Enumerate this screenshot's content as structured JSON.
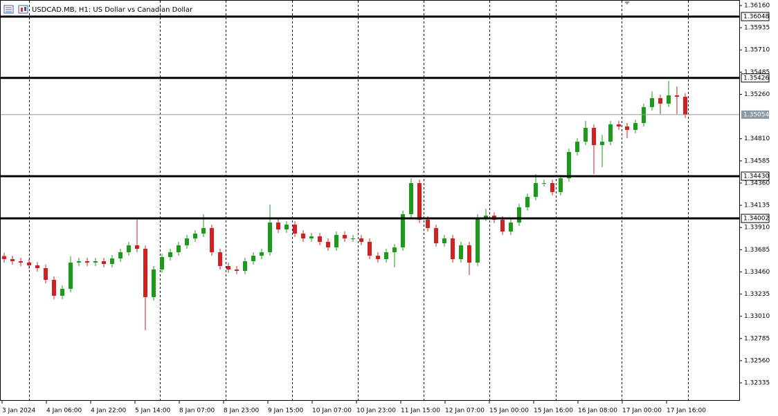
{
  "chart_data": {
    "type": "candlestick",
    "title": "USDCAD.MB, H1:  US Dollar vs Canadian Dollar",
    "up_color": "#1a9c1a",
    "down_color": "#d21f1f",
    "ylim": [
      1.32153,
      1.36216
    ],
    "yticks": [
      {
        "value": 1.3616,
        "label": "1.36160"
      },
      1.35935,
      {
        "value": 1.3571,
        "label": "1.35710"
      },
      1.35485,
      {
        "value": 1.3526,
        "label": "1.35260"
      },
      {
        "value": 1.3481,
        "label": "1.34810"
      },
      1.34585,
      {
        "value": 1.3436,
        "label": "1.34360"
      },
      1.34135,
      {
        "value": 1.3391,
        "label": "1.33910"
      },
      1.33685,
      {
        "value": 1.3346,
        "label": "1.33460"
      },
      1.33235,
      {
        "value": 1.3301,
        "label": "1.33010"
      },
      1.32785,
      {
        "value": 1.3256,
        "label": "1.32560"
      },
      1.32335
    ],
    "levels": [
      1.36048,
      1.35426,
      {
        "value": 1.3443,
        "label": "1.34430"
      },
      1.34002
    ],
    "current_price": 1.35054,
    "x_labels": [
      "3 Jan 2024",
      "4 Jan 06:00",
      "4 Jan 22:00",
      "5 Jan 14:00",
      "8 Jan 07:00",
      "8 Jan 23:00",
      "9 Jan 15:00",
      "10 Jan 07:00",
      "10 Jan 23:00",
      "11 Jan 15:00",
      "12 Jan 07:00",
      "15 Jan 00:00",
      "15 Jan 16:00",
      "16 Jan 08:00",
      "17 Jan 00:00",
      "17 Jan 16:00"
    ],
    "open": [
      1.3362,
      1.33589,
      1.33568,
      1.33554,
      1.33526,
      1.33498,
      1.33379,
      1.33218,
      1.33288,
      1.33554,
      1.33568,
      1.33554,
      1.33568,
      1.3354,
      1.33596,
      1.33659,
      1.33729,
      1.33694,
      1.33204,
      1.33484,
      1.3361,
      1.33659,
      1.33729,
      1.33799,
      1.33848,
      1.33904,
      1.33659,
      1.33519,
      1.33484,
      1.3347,
      1.33568,
      1.33624,
      1.33659,
      1.3396,
      1.3389,
      1.33939,
      1.33848,
      1.33799,
      1.3382,
      1.33764,
      1.33708,
      1.33834,
      1.33799,
      1.33799,
      1.33764,
      1.33624,
      1.33589,
      1.33659,
      1.33708,
      1.34045,
      1.3436,
      1.33988,
      1.33904,
      1.3375,
      1.33799,
      1.33589,
      1.33729,
      1.33554,
      1.34009,
      1.3403,
      1.33988,
      1.33869,
      1.3396,
      1.34115,
      1.3422,
      1.3436,
      1.3436,
      1.34269,
      1.34409,
      1.34675,
      1.3478,
      1.3492,
      1.34745,
      1.3478,
      1.34955,
      1.34934,
      1.34899,
      1.34969,
      1.3513,
      1.35221,
      1.35165,
      1.35249,
      1.35235
    ],
    "high": [
      1.33655,
      1.33624,
      1.33603,
      1.33589,
      1.33561,
      1.33533,
      1.33414,
      1.33323,
      1.33619,
      1.33603,
      1.33603,
      1.33603,
      1.33603,
      1.33631,
      1.33694,
      1.33764,
      1.33988,
      1.33729,
      1.33519,
      1.33645,
      1.33694,
      1.33764,
      1.33834,
      1.33883,
      1.34045,
      1.33939,
      1.33694,
      1.33554,
      1.33519,
      1.33603,
      1.33659,
      1.33694,
      1.34143,
      1.33995,
      1.33974,
      1.33974,
      1.33883,
      1.33855,
      1.33855,
      1.33799,
      1.33869,
      1.33869,
      1.33834,
      1.33834,
      1.33799,
      1.33659,
      1.33694,
      1.33743,
      1.3408,
      1.34409,
      1.34395,
      1.34023,
      1.33939,
      1.33834,
      1.33834,
      1.33764,
      1.33764,
      1.34044,
      1.34099,
      1.34065,
      1.34023,
      1.33995,
      1.3415,
      1.34255,
      1.3445,
      1.34395,
      1.34395,
      1.34444,
      1.3471,
      1.34815,
      1.3499,
      1.34955,
      1.3485,
      1.3499,
      1.3499,
      1.34969,
      1.35004,
      1.35165,
      1.3529,
      1.35256,
      1.35396,
      1.3534,
      1.3527
    ],
    "low": [
      1.33554,
      1.33533,
      1.33519,
      1.33491,
      1.33463,
      1.33344,
      1.33183,
      1.33183,
      1.33253,
      1.33519,
      1.33519,
      1.33519,
      1.33505,
      1.33505,
      1.33561,
      1.33624,
      1.33659,
      1.32868,
      1.33169,
      1.33449,
      1.33575,
      1.33624,
      1.33694,
      1.33764,
      1.33813,
      1.33624,
      1.33484,
      1.33449,
      1.33435,
      1.33435,
      1.33533,
      1.33589,
      1.33624,
      1.33855,
      1.33855,
      1.33813,
      1.33764,
      1.33764,
      1.33729,
      1.33673,
      1.33673,
      1.33764,
      1.33764,
      1.33729,
      1.33589,
      1.33554,
      1.33554,
      1.33505,
      1.33673,
      1.3401,
      1.33953,
      1.33869,
      1.33715,
      1.33715,
      1.33554,
      1.33554,
      1.33428,
      1.33519,
      1.33974,
      1.33953,
      1.33834,
      1.33834,
      1.33925,
      1.3408,
      1.34185,
      1.34325,
      1.34234,
      1.34234,
      1.34374,
      1.3464,
      1.34745,
      1.34451,
      1.3452,
      1.34745,
      1.34899,
      1.34815,
      1.34864,
      1.34934,
      1.35095,
      1.3506,
      1.3513,
      1.3506,
      1.35019
    ],
    "close": [
      1.33589,
      1.33568,
      1.33554,
      1.33526,
      1.33498,
      1.33379,
      1.33218,
      1.33288,
      1.33554,
      1.33568,
      1.33554,
      1.33568,
      1.3354,
      1.33596,
      1.33659,
      1.33729,
      1.33694,
      1.33204,
      1.33484,
      1.3361,
      1.33659,
      1.33729,
      1.33799,
      1.33848,
      1.33904,
      1.33659,
      1.33519,
      1.33484,
      1.3347,
      1.33568,
      1.33624,
      1.33659,
      1.3396,
      1.3389,
      1.33939,
      1.33848,
      1.33799,
      1.3382,
      1.33764,
      1.33708,
      1.33834,
      1.33799,
      1.33799,
      1.33764,
      1.33624,
      1.33589,
      1.33659,
      1.33708,
      1.34045,
      1.3436,
      1.33988,
      1.33904,
      1.3375,
      1.33799,
      1.33589,
      1.33729,
      1.33554,
      1.34009,
      1.3403,
      1.33988,
      1.33869,
      1.3396,
      1.34115,
      1.3422,
      1.3436,
      1.3436,
      1.34269,
      1.34409,
      1.34675,
      1.3478,
      1.3492,
      1.34745,
      1.3478,
      1.34955,
      1.34934,
      1.34899,
      1.34969,
      1.3513,
      1.35221,
      1.35165,
      1.35249,
      1.35235,
      1.35054
    ]
  }
}
